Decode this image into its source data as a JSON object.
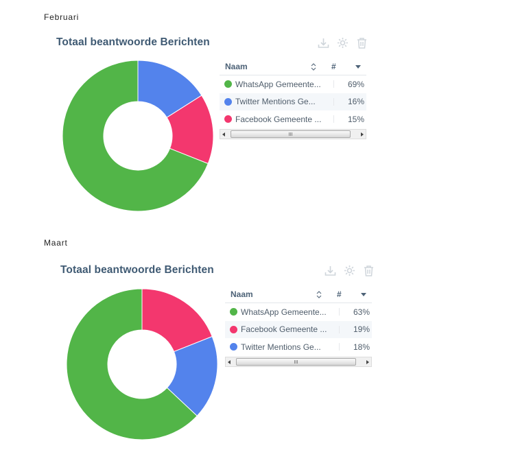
{
  "icons": [
    "download-icon",
    "gear-icon",
    "trash-icon"
  ],
  "table_header": {
    "name": "Naam",
    "count": "#"
  },
  "scrollbar_grip": "III",
  "chart_data": [
    {
      "type": "pie",
      "month": "Februari",
      "title": "Totaal beantwoorde Berichten",
      "donut": true,
      "slices": [
        {
          "label": "WhatsApp Gemeente...",
          "value": 69,
          "display": "69%",
          "color": "#52b548"
        },
        {
          "label": "Twitter Mentions Ge...",
          "value": 16,
          "display": "16%",
          "color": "#5383ec"
        },
        {
          "label": "Facebook Gemeente ...",
          "value": 15,
          "display": "15%",
          "color": "#f3376e"
        }
      ]
    },
    {
      "type": "pie",
      "month": "Maart",
      "title": "Totaal beantwoorde Berichten",
      "donut": true,
      "slices": [
        {
          "label": "WhatsApp Gemeente...",
          "value": 63,
          "display": "63%",
          "color": "#52b548"
        },
        {
          "label": "Facebook Gemeente ...",
          "value": 19,
          "display": "19%",
          "color": "#f3376e"
        },
        {
          "label": "Twitter Mentions Ge...",
          "value": 18,
          "display": "18%",
          "color": "#5383ec"
        }
      ]
    }
  ]
}
